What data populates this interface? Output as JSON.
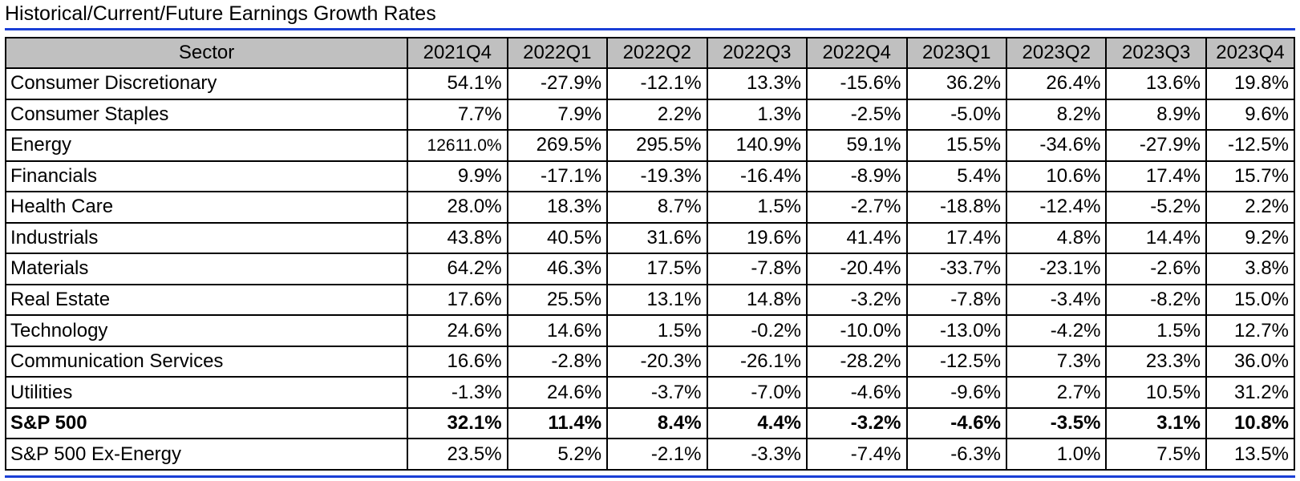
{
  "title": "Historical/Current/Future Earnings Growth Rates",
  "colors": {
    "rule": "#1a3fd6",
    "header_bg": "#c0c0c0"
  },
  "chart_data": {
    "type": "table",
    "title": "Historical/Current/Future Earnings Growth Rates",
    "columns": [
      "Sector",
      "2021Q4",
      "2022Q1",
      "2022Q2",
      "2022Q3",
      "2022Q4",
      "2023Q1",
      "2023Q2",
      "2023Q3",
      "2023Q4"
    ],
    "rows": [
      {
        "sector": "Consumer Discretionary",
        "values": [
          "54.1%",
          "-27.9%",
          "-12.1%",
          "13.3%",
          "-15.6%",
          "36.2%",
          "26.4%",
          "13.6%",
          "19.8%"
        ]
      },
      {
        "sector": "Consumer Staples",
        "values": [
          "7.7%",
          "7.9%",
          "2.2%",
          "1.3%",
          "-2.5%",
          "-5.0%",
          "8.2%",
          "8.9%",
          "9.6%"
        ]
      },
      {
        "sector": "Energy",
        "values": [
          "12611.0%",
          "269.5%",
          "295.5%",
          "140.9%",
          "59.1%",
          "15.5%",
          "-34.6%",
          "-27.9%",
          "-12.5%"
        ]
      },
      {
        "sector": "Financials",
        "values": [
          "9.9%",
          "-17.1%",
          "-19.3%",
          "-16.4%",
          "-8.9%",
          "5.4%",
          "10.6%",
          "17.4%",
          "15.7%"
        ]
      },
      {
        "sector": "Health Care",
        "values": [
          "28.0%",
          "18.3%",
          "8.7%",
          "1.5%",
          "-2.7%",
          "-18.8%",
          "-12.4%",
          "-5.2%",
          "2.2%"
        ]
      },
      {
        "sector": "Industrials",
        "values": [
          "43.8%",
          "40.5%",
          "31.6%",
          "19.6%",
          "41.4%",
          "17.4%",
          "4.8%",
          "14.4%",
          "9.2%"
        ]
      },
      {
        "sector": "Materials",
        "values": [
          "64.2%",
          "46.3%",
          "17.5%",
          "-7.8%",
          "-20.4%",
          "-33.7%",
          "-23.1%",
          "-2.6%",
          "3.8%"
        ]
      },
      {
        "sector": "Real Estate",
        "values": [
          "17.6%",
          "25.5%",
          "13.1%",
          "14.8%",
          "-3.2%",
          "-7.8%",
          "-3.4%",
          "-8.2%",
          "15.0%"
        ]
      },
      {
        "sector": "Technology",
        "values": [
          "24.6%",
          "14.6%",
          "1.5%",
          "-0.2%",
          "-10.0%",
          "-13.0%",
          "-4.2%",
          "1.5%",
          "12.7%"
        ]
      },
      {
        "sector": "Communication Services",
        "values": [
          "16.6%",
          "-2.8%",
          "-20.3%",
          "-26.1%",
          "-28.2%",
          "-12.5%",
          "7.3%",
          "23.3%",
          "36.0%"
        ]
      },
      {
        "sector": "Utilities",
        "values": [
          "-1.3%",
          "24.6%",
          "-3.7%",
          "-7.0%",
          "-4.6%",
          "-9.6%",
          "2.7%",
          "10.5%",
          "31.2%"
        ]
      },
      {
        "sector": "S&P 500",
        "bold": true,
        "values": [
          "32.1%",
          "11.4%",
          "8.4%",
          "4.4%",
          "-3.2%",
          "-4.6%",
          "-3.5%",
          "3.1%",
          "10.8%"
        ]
      },
      {
        "sector": "S&P 500 Ex-Energy",
        "values": [
          "23.5%",
          "5.2%",
          "-2.1%",
          "-3.3%",
          "-7.4%",
          "-6.3%",
          "1.0%",
          "7.5%",
          "13.5%"
        ]
      }
    ]
  }
}
